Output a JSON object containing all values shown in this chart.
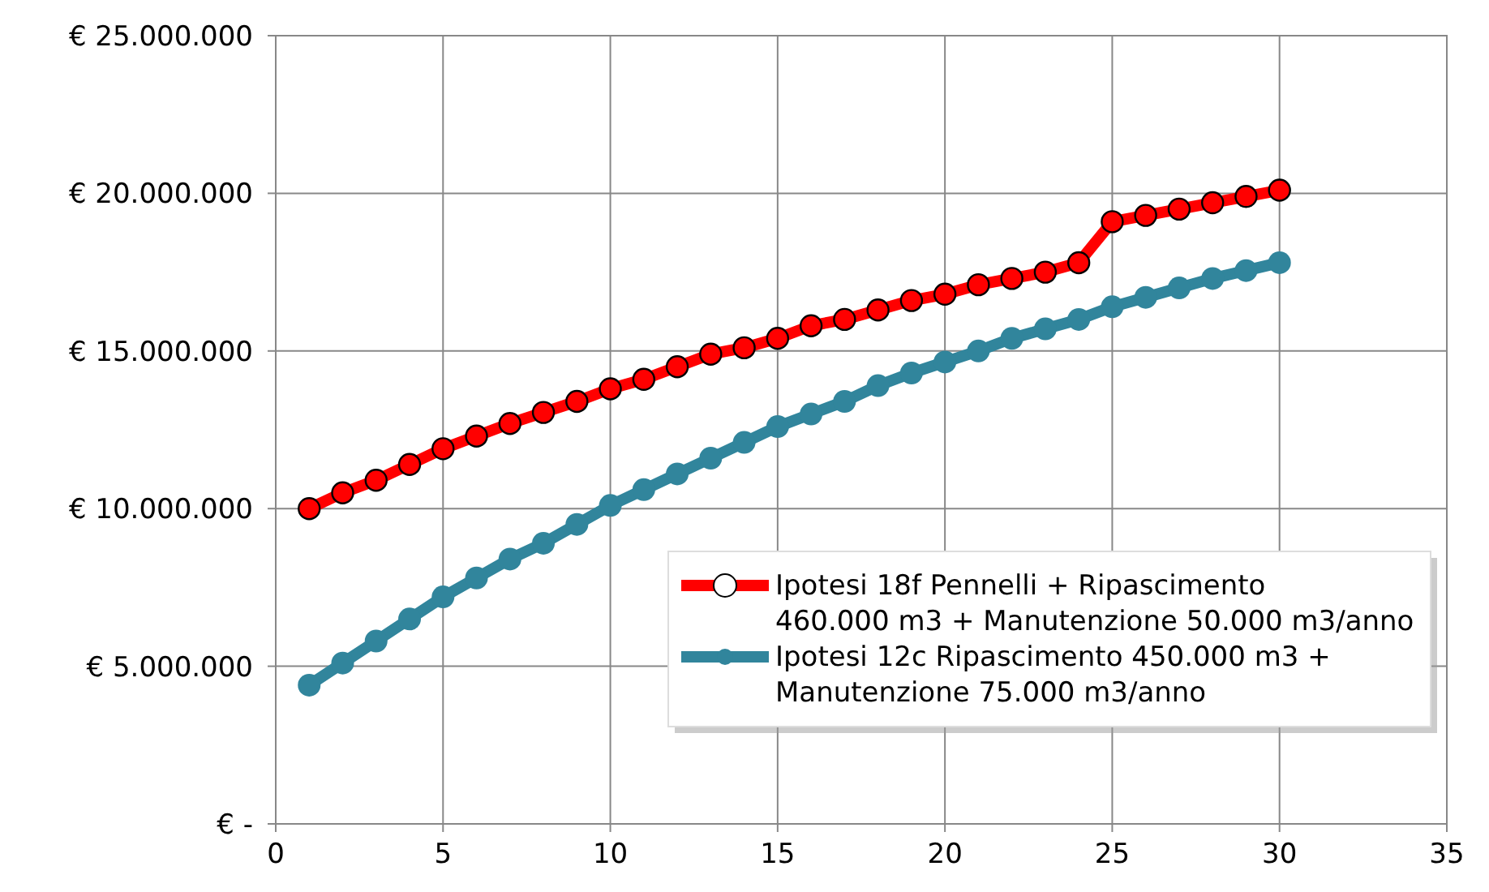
{
  "chart_data": {
    "type": "line",
    "x": [
      1,
      2,
      3,
      4,
      5,
      6,
      7,
      8,
      9,
      10,
      11,
      12,
      13,
      14,
      15,
      16,
      17,
      18,
      19,
      20,
      21,
      22,
      23,
      24,
      25,
      26,
      27,
      28,
      29,
      30
    ],
    "series": [
      {
        "name": "Ipotesi 18f Pennelli + Ripascimento 460.000 m3 + Manutenzione 50.000 m3/anno",
        "color": "#ff0000",
        "values": [
          10000000,
          10500000,
          10900000,
          11400000,
          11900000,
          12300000,
          12700000,
          13050000,
          13400000,
          13800000,
          14100000,
          14500000,
          14900000,
          15100000,
          15400000,
          15800000,
          16000000,
          16300000,
          16600000,
          16800000,
          17100000,
          17300000,
          17500000,
          17800000,
          19100000,
          19300000,
          19500000,
          19700000,
          19900000,
          20100000
        ]
      },
      {
        "name": "Ipotesi 12c Ripascimento 450.000 m3 + Manutenzione 75.000 m3/anno",
        "color": "#31859c",
        "values": [
          4400000,
          5100000,
          5800000,
          6500000,
          7200000,
          7800000,
          8400000,
          8900000,
          9500000,
          10100000,
          10600000,
          11100000,
          11600000,
          12100000,
          12600000,
          13000000,
          13400000,
          13900000,
          14300000,
          14650000,
          15000000,
          15400000,
          15700000,
          16000000,
          16400000,
          16700000,
          17000000,
          17300000,
          17550000,
          17800000
        ]
      }
    ],
    "xlim": [
      0,
      35
    ],
    "xticks": [
      0,
      5,
      10,
      15,
      20,
      25,
      30,
      35
    ],
    "ylim": [
      0,
      25000000
    ],
    "yticks": [
      {
        "value": 0,
        "label": "€ -"
      },
      {
        "value": 5000000,
        "label": "€ 5.000.000"
      },
      {
        "value": 10000000,
        "label": "€ 10.000.000"
      },
      {
        "value": 15000000,
        "label": "€ 15.000.000"
      },
      {
        "value": 20000000,
        "label": "€ 20.000.000"
      },
      {
        "value": 25000000,
        "label": "€ 25.000.000"
      }
    ],
    "grid": true,
    "legend": "bottom right",
    "marker": "circle",
    "line_style": "solid"
  }
}
